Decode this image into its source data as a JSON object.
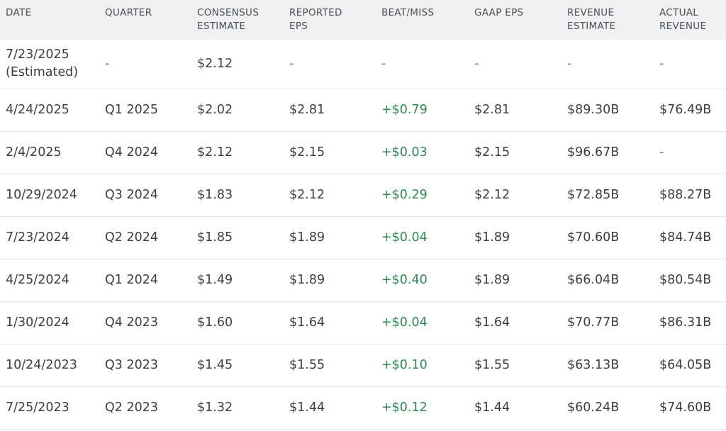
{
  "columns": [
    "DATE",
    "QUARTER",
    "CONSENSUS\nESTIMATE",
    "REPORTED\nEPS",
    "BEAT/MISS",
    "GAAP EPS",
    "REVENUE\nESTIMATE",
    "ACTUAL\nREVENUE"
  ],
  "rows": [
    {
      "date": "7/23/2025\n(Estimated)",
      "quarter": "-",
      "consensus": "$2.12",
      "reported": "-",
      "beat_miss": "-",
      "gaap_eps": "-",
      "revenue_estimate": "-",
      "actual_revenue": "-"
    },
    {
      "date": "4/24/2025",
      "quarter": "Q1 2025",
      "consensus": "$2.02",
      "reported": "$2.81",
      "beat_miss": "+$0.79",
      "gaap_eps": "$2.81",
      "revenue_estimate": "$89.30B",
      "actual_revenue": "$76.49B"
    },
    {
      "date": "2/4/2025",
      "quarter": "Q4 2024",
      "consensus": "$2.12",
      "reported": "$2.15",
      "beat_miss": "+$0.03",
      "gaap_eps": "$2.15",
      "revenue_estimate": "$96.67B",
      "actual_revenue": "-"
    },
    {
      "date": "10/29/2024",
      "quarter": "Q3 2024",
      "consensus": "$1.83",
      "reported": "$2.12",
      "beat_miss": "+$0.29",
      "gaap_eps": "$2.12",
      "revenue_estimate": "$72.85B",
      "actual_revenue": "$88.27B"
    },
    {
      "date": "7/23/2024",
      "quarter": "Q2 2024",
      "consensus": "$1.85",
      "reported": "$1.89",
      "beat_miss": "+$0.04",
      "gaap_eps": "$1.89",
      "revenue_estimate": "$70.60B",
      "actual_revenue": "$84.74B"
    },
    {
      "date": "4/25/2024",
      "quarter": "Q1 2024",
      "consensus": "$1.49",
      "reported": "$1.89",
      "beat_miss": "+$0.40",
      "gaap_eps": "$1.89",
      "revenue_estimate": "$66.04B",
      "actual_revenue": "$80.54B"
    },
    {
      "date": "1/30/2024",
      "quarter": "Q4 2023",
      "consensus": "$1.60",
      "reported": "$1.64",
      "beat_miss": "+$0.04",
      "gaap_eps": "$1.64",
      "revenue_estimate": "$70.77B",
      "actual_revenue": "$86.31B"
    },
    {
      "date": "10/24/2023",
      "quarter": "Q3 2023",
      "consensus": "$1.45",
      "reported": "$1.55",
      "beat_miss": "+$0.10",
      "gaap_eps": "$1.55",
      "revenue_estimate": "$63.13B",
      "actual_revenue": "$64.05B"
    },
    {
      "date": "7/25/2023",
      "quarter": "Q2 2023",
      "consensus": "$1.32",
      "reported": "$1.44",
      "beat_miss": "+$0.12",
      "gaap_eps": "$1.44",
      "revenue_estimate": "$60.24B",
      "actual_revenue": "$74.60B"
    }
  ],
  "colors": {
    "header_bg": "#eef0f2",
    "beat_positive": "#2c8a50",
    "row_border": "#e2e5e8"
  }
}
